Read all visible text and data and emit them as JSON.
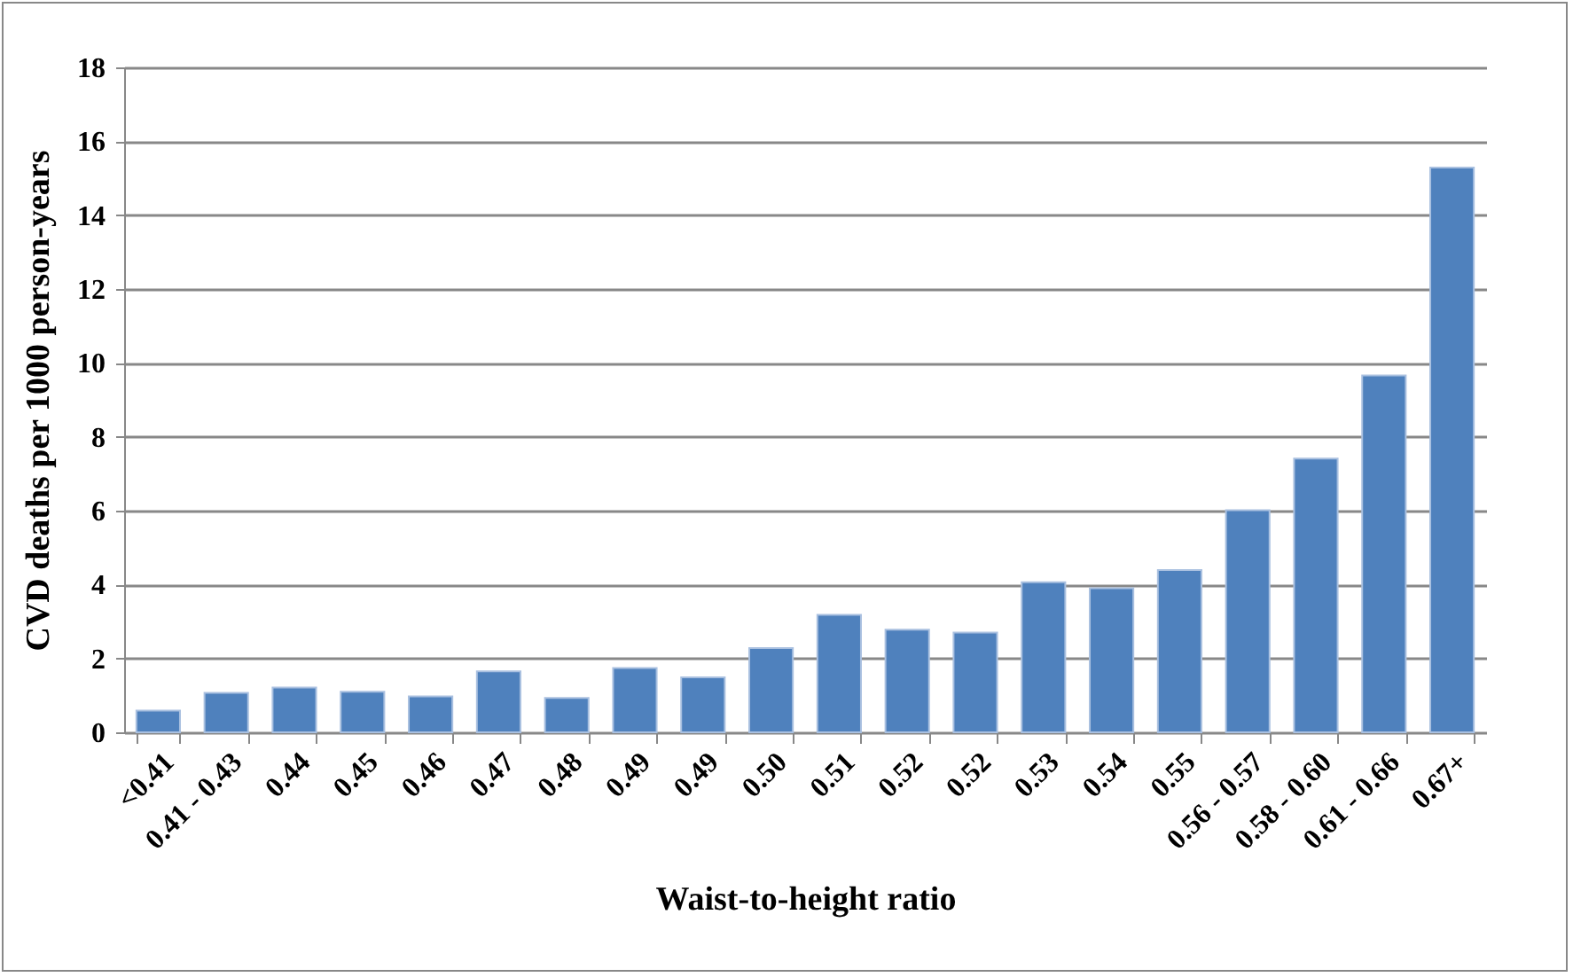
{
  "chart_data": {
    "type": "bar",
    "xlabel": "Waist-to-height ratio",
    "ylabel": "CVD deaths per 1000 person-years",
    "categories": [
      "<0.41",
      "0.41 - 0.43",
      "0.44",
      "0.45",
      "0.46",
      "0.47",
      "0.48",
      "0.49",
      "0.49",
      "0.50",
      "0.51",
      "0.52",
      "0.52",
      "0.53",
      "0.54",
      "0.55",
      "0.56 - 0.57",
      "0.58 - 0.60",
      "0.61 - 0.66",
      "0.67+"
    ],
    "values": [
      0.59,
      1.07,
      1.21,
      1.1,
      0.97,
      1.65,
      0.93,
      1.74,
      1.49,
      2.28,
      3.18,
      2.78,
      2.7,
      4.06,
      3.9,
      4.39,
      6.01,
      7.41,
      9.66,
      15.29
    ],
    "color": "#4f81bd",
    "ylim": [
      0,
      18
    ],
    "yticks": [
      0,
      2,
      4,
      6,
      8,
      10,
      12,
      14,
      16,
      18
    ],
    "grid": "y"
  }
}
